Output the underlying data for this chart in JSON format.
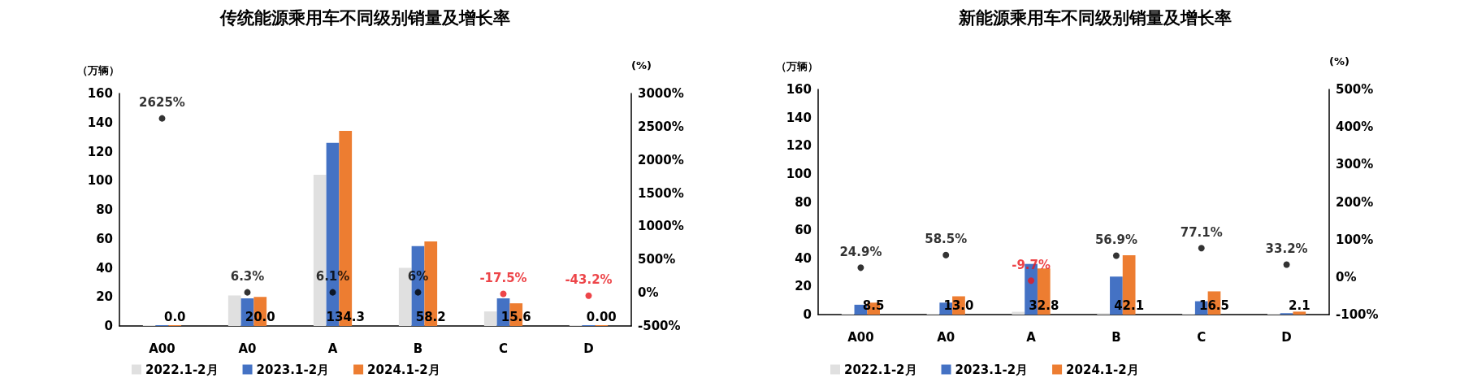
{
  "chart_data": [
    {
      "type": "bar",
      "title": "传统能源乘用车不同级别销量及增长率",
      "ylabel": "（万辆）",
      "y2label": "(%)",
      "categories": [
        "A00",
        "A0",
        "A",
        "B",
        "C",
        "D"
      ],
      "series": [
        {
          "name": "2022.1-2月",
          "color": "#e0e0e0",
          "values": [
            0,
            21,
            104,
            40,
            10,
            0
          ]
        },
        {
          "name": "2023.1-2月",
          "color": "#4472c4",
          "values": [
            0,
            19,
            126,
            55,
            19,
            0
          ]
        },
        {
          "name": "2024.1-2月",
          "color": "#ed7d31",
          "values": [
            0.0,
            20.0,
            134.3,
            58.2,
            15.6,
            0.0
          ],
          "value_labels": [
            "0.0",
            "20.0",
            "134.3",
            "58.2",
            "15.6",
            "0.00"
          ]
        },
        {
          "type": "scatter",
          "axis": "y2",
          "marker": "circle",
          "values": [
            2625,
            6.3,
            6.1,
            6,
            -17.5,
            -43.2
          ],
          "colors": [
            "#000000",
            "#000000",
            "#000000",
            "#000000",
            "#e8161b",
            "#e8161b"
          ],
          "value_labels": [
            "2625%",
            "6.3%",
            "6.1%",
            "6%",
            "-17.5%",
            "-43.2%"
          ]
        }
      ],
      "ylim": [
        0,
        160
      ],
      "yticks": [
        0,
        20,
        40,
        60,
        80,
        100,
        120,
        140,
        160
      ],
      "y2lim": [
        -500,
        3000
      ],
      "y2ticks": [
        {
          "value": -500,
          "label": "-500%"
        },
        {
          "value": 0,
          "label": "0%"
        },
        {
          "value": 500,
          "label": "500%"
        },
        {
          "value": 1000,
          "label": "1000%"
        },
        {
          "value": 1500,
          "label": "1500%"
        },
        {
          "value": 2000,
          "label": "2000%"
        },
        {
          "value": 2500,
          "label": "2500%"
        },
        {
          "value": 3000,
          "label": "3000%"
        }
      ],
      "grid": false,
      "legend": "bottom"
    },
    {
      "type": "bar",
      "title": "新能源乘用车不同级别销量及增长率",
      "ylabel": "（万辆）",
      "y2label": "(%)",
      "categories": [
        "A00",
        "A0",
        "A",
        "B",
        "C",
        "D"
      ],
      "series": [
        {
          "name": "2022.1-2月",
          "color": "#e0e0e0",
          "values": [
            0,
            0,
            2,
            1,
            0,
            0
          ]
        },
        {
          "name": "2023.1-2月",
          "color": "#4472c4",
          "values": [
            7,
            8.5,
            36,
            27,
            9.5,
            1
          ]
        },
        {
          "name": "2024.1-2月",
          "color": "#ed7d31",
          "values": [
            8.5,
            13.0,
            32.8,
            42.1,
            16.5,
            2.1
          ],
          "value_labels": [
            "8.5",
            "13.0",
            "32.8",
            "42.1",
            "16.5",
            "2.1"
          ]
        },
        {
          "type": "scatter",
          "axis": "y2",
          "marker": "circle",
          "values": [
            24.9,
            58.5,
            -9.7,
            56.9,
            77.1,
            33.2
          ],
          "colors": [
            "#000000",
            "#000000",
            "#e8161b",
            "#000000",
            "#000000",
            "#000000"
          ],
          "value_labels": [
            "24.9%",
            "58.5%",
            "-9.7%",
            "56.9%",
            "77.1%",
            "33.2%"
          ]
        }
      ],
      "ylim": [
        0,
        160
      ],
      "yticks": [
        0,
        20,
        40,
        60,
        80,
        100,
        120,
        140,
        160
      ],
      "y2lim": [
        -100,
        500
      ],
      "y2ticks": [
        {
          "value": -100,
          "label": "-100%"
        },
        {
          "value": 0,
          "label": "0%"
        },
        {
          "value": 100,
          "label": "100%"
        },
        {
          "value": 200,
          "label": "200%"
        },
        {
          "value": 300,
          "label": "300%"
        },
        {
          "value": 400,
          "label": "400%"
        },
        {
          "value": 500,
          "label": "500%"
        }
      ],
      "grid": false,
      "legend": "bottom"
    }
  ]
}
